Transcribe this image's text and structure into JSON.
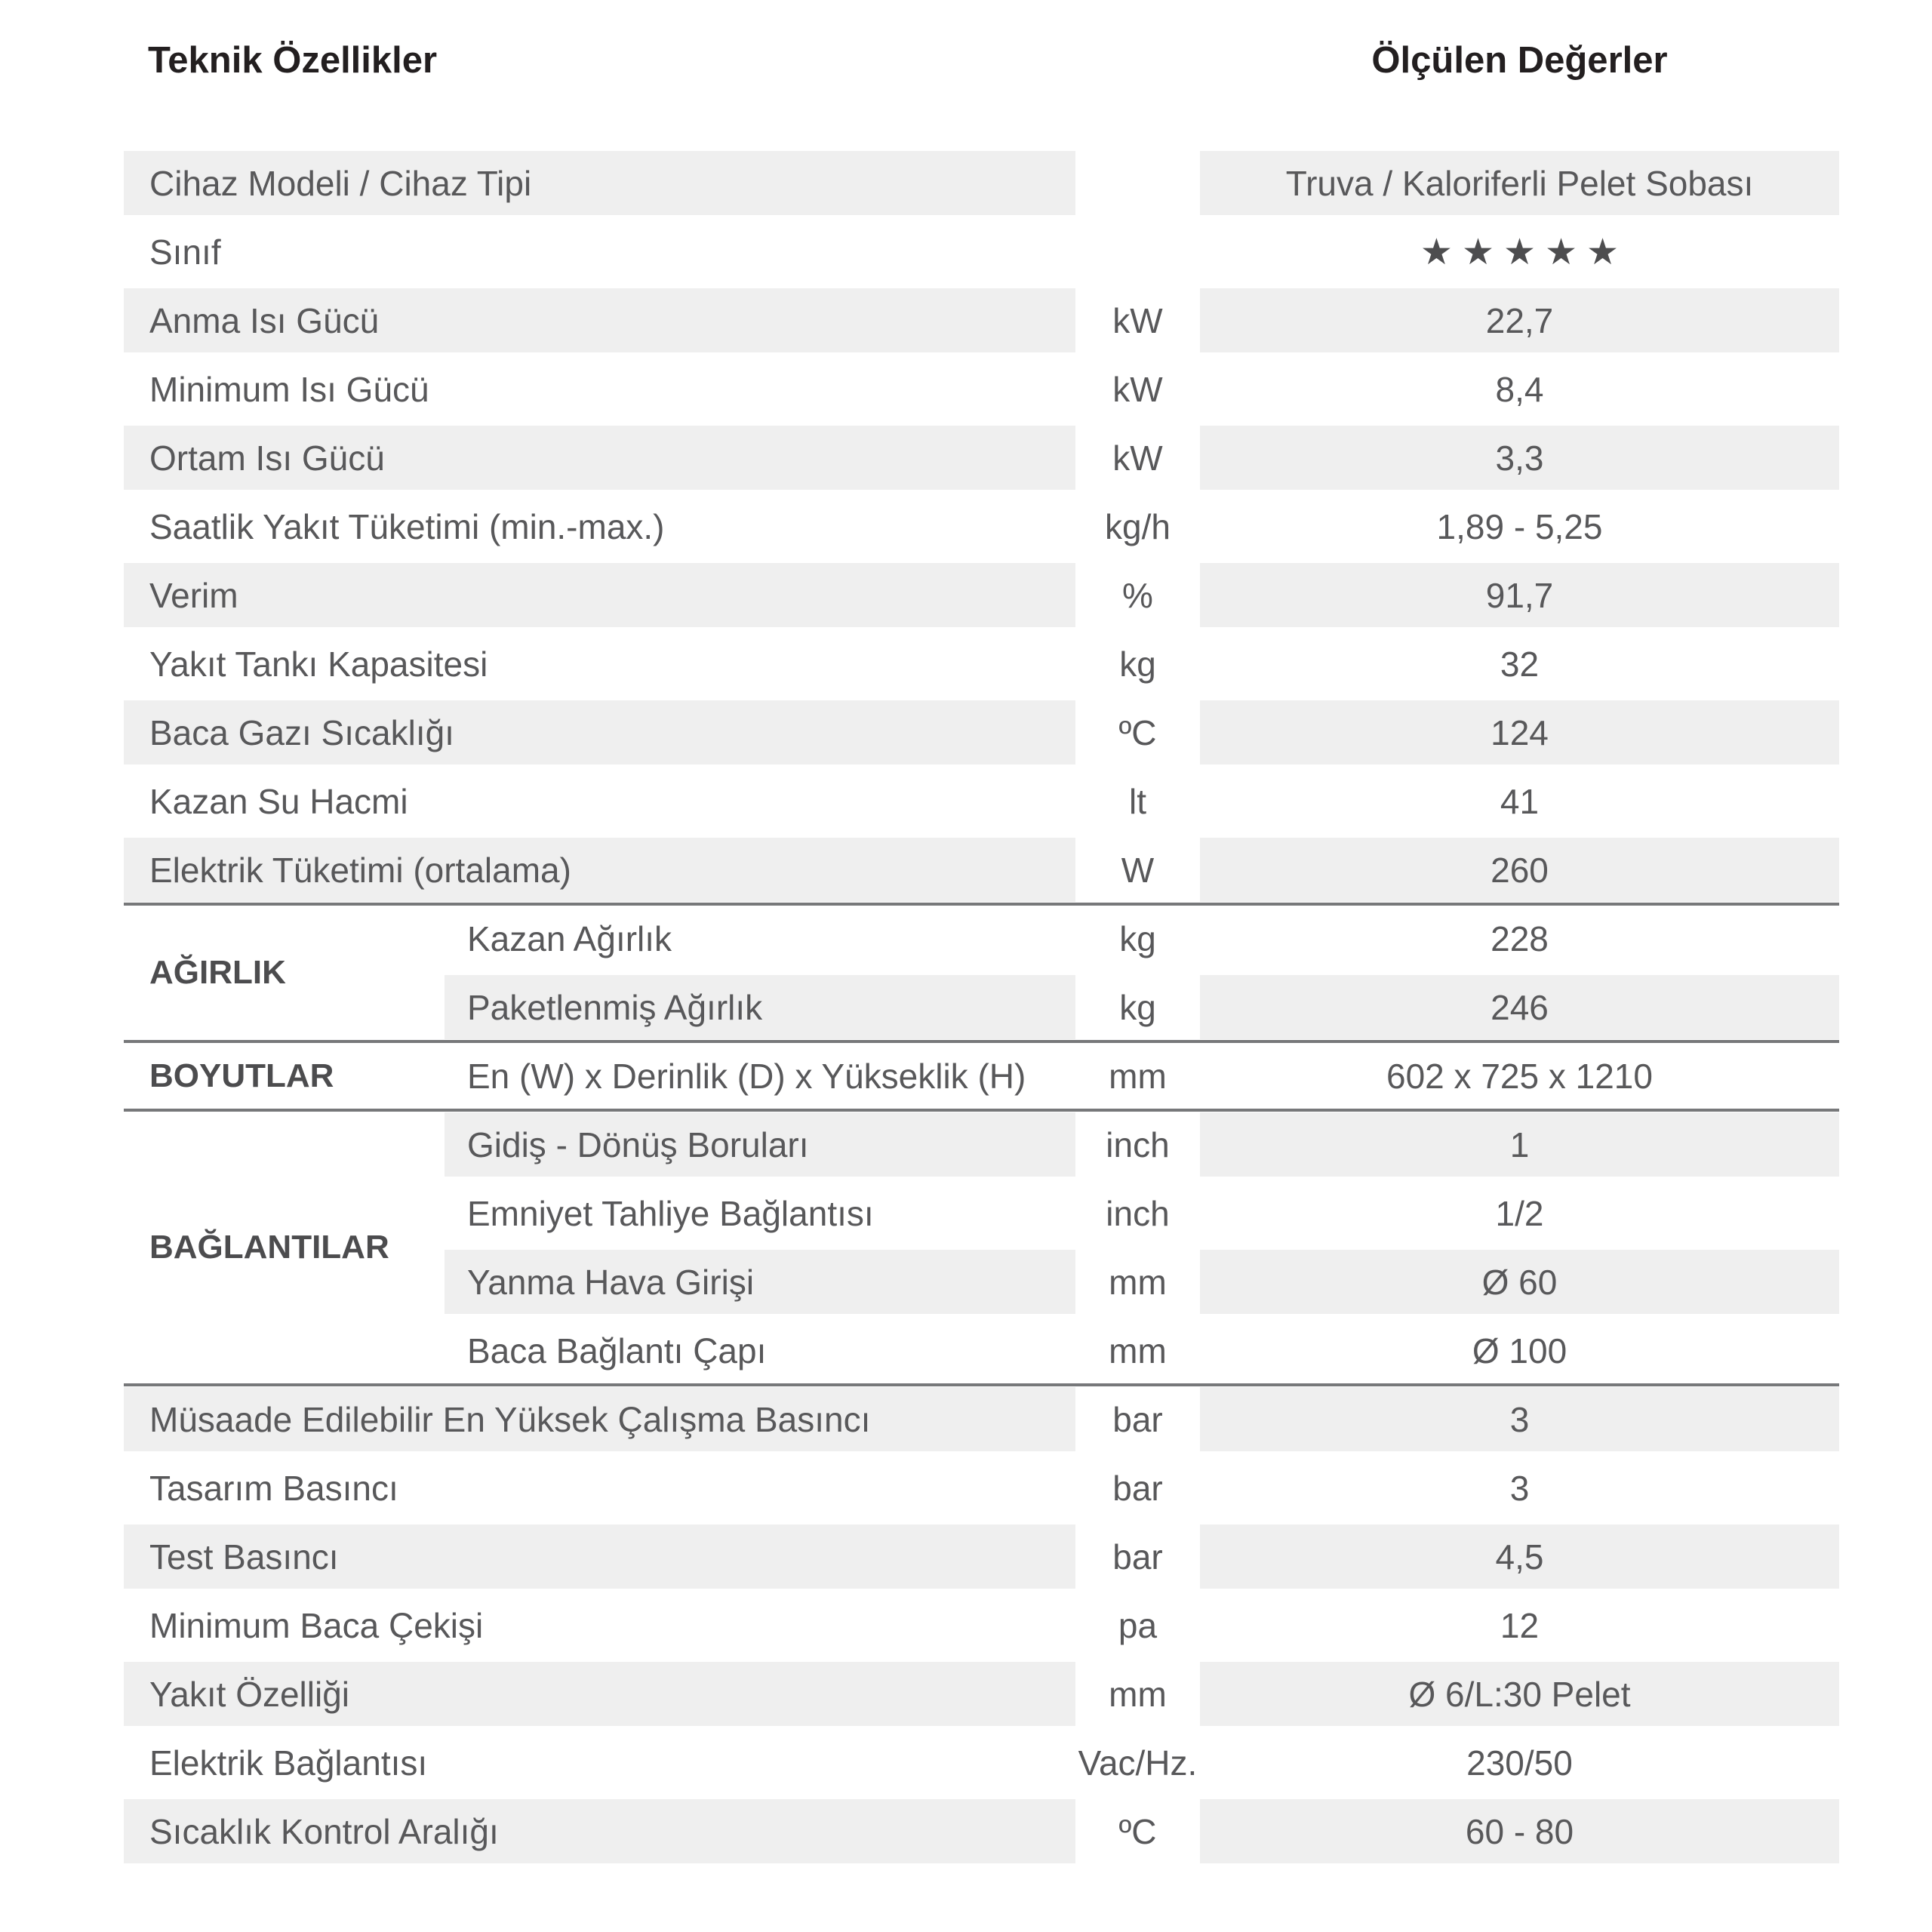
{
  "page": {
    "title_left": "Teknik Özellikler",
    "title_right": "Ölçülen Değerler"
  },
  "colors": {
    "row_shade": "#efefef",
    "text": "#58585a",
    "title": "#231f20",
    "divider": "#77787a",
    "stars": "#4d4d4f"
  },
  "table": {
    "sections": [
      {
        "type": "rows",
        "rows": [
          {
            "label": "Cihaz Modeli / Cihaz Tipi",
            "unit": "",
            "value": "Truva / Kaloriferli Pelet Sobası",
            "shaded": true
          },
          {
            "label": "Sınıf",
            "unit": "",
            "value": "★★★★★",
            "shaded": false,
            "stars": true
          },
          {
            "label": "Anma Isı Gücü",
            "unit": "kW",
            "value": "22,7",
            "shaded": true
          },
          {
            "label": "Minimum Isı Gücü",
            "unit": "kW",
            "value": "8,4",
            "shaded": false
          },
          {
            "label": "Ortam Isı Gücü",
            "unit": "kW",
            "value": "3,3",
            "shaded": true
          },
          {
            "label": "Saatlik Yakıt Tüketimi (min.-max.)",
            "unit": "kg/h",
            "value": "1,89 - 5,25",
            "shaded": false
          },
          {
            "label": "Verim",
            "unit": "%",
            "value": "91,7",
            "shaded": true
          },
          {
            "label": "Yakıt Tankı Kapasitesi",
            "unit": "kg",
            "value": "32",
            "shaded": false
          },
          {
            "label": "Baca Gazı Sıcaklığı",
            "unit": "ºC",
            "value": "124",
            "shaded": true
          },
          {
            "label": "Kazan Su Hacmi",
            "unit": "lt",
            "value": "41",
            "shaded": false
          },
          {
            "label": "Elektrik Tüketimi (ortalama)",
            "unit": "W",
            "value": "260",
            "shaded": true
          }
        ]
      },
      {
        "type": "group",
        "label": "AĞIRLIK",
        "rows": [
          {
            "label": "Kazan Ağırlık",
            "unit": "kg",
            "value": "228",
            "shaded": false
          },
          {
            "label": "Paketlenmiş Ağırlık",
            "unit": "kg",
            "value": "246",
            "shaded": true
          }
        ]
      },
      {
        "type": "group",
        "label": "BOYUTLAR",
        "rows": [
          {
            "label": "En (W) x Derinlik (D) x Yükseklik (H)",
            "unit": "mm",
            "value": "602 x 725 x 1210",
            "shaded": false
          }
        ]
      },
      {
        "type": "group",
        "label": "BAĞLANTILAR",
        "rows": [
          {
            "label": "Gidiş - Dönüş Boruları",
            "unit": "inch",
            "value": "1",
            "shaded": true
          },
          {
            "label": "Emniyet Tahliye Bağlantısı",
            "unit": "inch",
            "value": "1/2",
            "shaded": false
          },
          {
            "label": "Yanma Hava Girişi",
            "unit": "mm",
            "value": "Ø 60",
            "shaded": true
          },
          {
            "label": "Baca Bağlantı Çapı",
            "unit": "mm",
            "value": "Ø 100",
            "shaded": false
          }
        ]
      },
      {
        "type": "rows",
        "rows": [
          {
            "label": "Müsaade Edilebilir En Yüksek Çalışma Basıncı",
            "unit": "bar",
            "value": "3",
            "shaded": true
          },
          {
            "label": "Tasarım Basıncı",
            "unit": "bar",
            "value": "3",
            "shaded": false
          },
          {
            "label": "Test Basıncı",
            "unit": "bar",
            "value": "4,5",
            "shaded": true
          },
          {
            "label": "Minimum Baca Çekişi",
            "unit": "pa",
            "value": "12",
            "shaded": false
          },
          {
            "label": "Yakıt Özelliği",
            "unit": "mm",
            "value": "Ø 6/L:30 Pelet",
            "shaded": true
          },
          {
            "label": "Elektrik Bağlantısı",
            "unit": "Vac/Hz.",
            "value": "230/50",
            "shaded": false
          },
          {
            "label": "Sıcaklık Kontrol Aralığı",
            "unit": "ºC",
            "value": "60 - 80",
            "shaded": true
          }
        ]
      }
    ]
  }
}
